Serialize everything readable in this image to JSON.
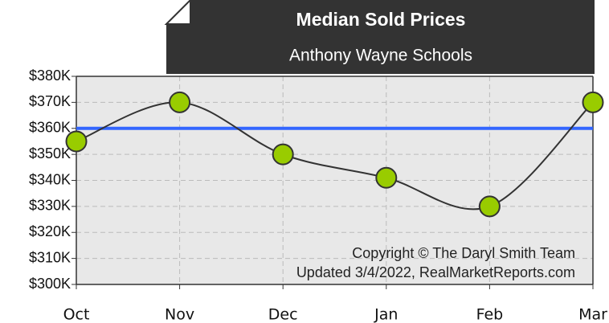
{
  "chart_data": {
    "type": "line",
    "title": "Median Sold Prices",
    "subtitle": "Anthony Wayne Schools",
    "annotations": [
      "Copyright © The Daryl Smith Team",
      "Updated 3/4/2022, RealMarketReports.com"
    ],
    "categories": [
      "Oct",
      "Nov",
      "Dec",
      "Jan",
      "Feb",
      "Mar"
    ],
    "series": [
      {
        "color": "#99cc00",
        "values": [
          355000,
          370000,
          350000,
          341000,
          330000,
          370000
        ]
      }
    ],
    "reference_line": {
      "value": 360000,
      "color": "#3366ff"
    },
    "ylim": [
      300000,
      380000
    ],
    "yticks": [
      {
        "value": 300000,
        "label": "$300K"
      },
      {
        "value": 310000,
        "label": "$310K"
      },
      {
        "value": 320000,
        "label": "$320K"
      },
      {
        "value": 330000,
        "label": "$330K"
      },
      {
        "value": 340000,
        "label": "$340K"
      },
      {
        "value": 350000,
        "label": "$350K"
      },
      {
        "value": 360000,
        "label": "$360K"
      },
      {
        "value": 370000,
        "label": "$370K"
      },
      {
        "value": 380000,
        "label": "$380K"
      }
    ],
    "grid": true
  }
}
